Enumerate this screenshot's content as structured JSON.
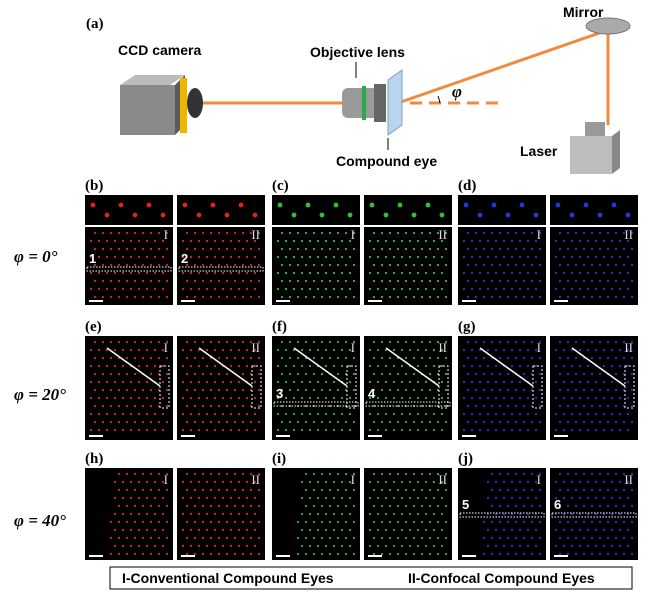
{
  "setup": {
    "label": "(a)",
    "camera": "CCD camera",
    "objective": "Objective lens",
    "compound_eye": "Compound eye",
    "mirror": "Mirror",
    "laser": "Laser",
    "angle": "φ"
  },
  "rows": [
    {
      "angle_label": "φ = 0°",
      "panels": [
        {
          "label": "(b)",
          "halves": [
            "I",
            "II"
          ],
          "markers": [
            "1",
            "2"
          ]
        },
        {
          "label": "(c)",
          "halves": [
            "I",
            "II"
          ]
        },
        {
          "label": "(d)",
          "halves": [
            "I",
            "II"
          ]
        }
      ]
    },
    {
      "angle_label": "φ = 20°",
      "panels": [
        {
          "label": "(e)",
          "halves": [
            "I",
            "II"
          ]
        },
        {
          "label": "(f)",
          "halves": [
            "I",
            "II"
          ],
          "markers": [
            "3",
            "4"
          ]
        },
        {
          "label": "(g)",
          "halves": [
            "I",
            "II"
          ]
        }
      ]
    },
    {
      "angle_label": "φ = 40°",
      "panels": [
        {
          "label": "(h)",
          "halves": [
            "I",
            "II"
          ]
        },
        {
          "label": "(i)",
          "halves": [
            "I",
            "II"
          ]
        },
        {
          "label": "(j)",
          "halves": [
            "I",
            "II"
          ],
          "markers": [
            "5",
            "6"
          ]
        }
      ]
    }
  ],
  "legend": [
    "I-Conventional Compound Eyes",
    "II-Confocal Compound Eyes"
  ]
}
